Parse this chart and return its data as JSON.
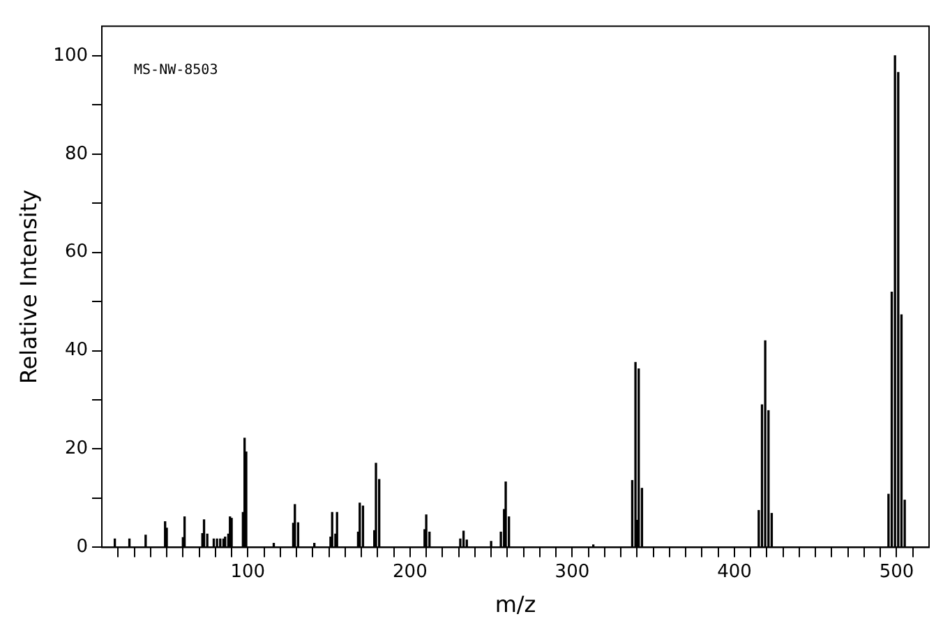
{
  "chart_data": {
    "type": "bar",
    "xlabel": "m/z",
    "ylabel": "Relative Intensity",
    "annotations": [
      "MS-NW-8503"
    ],
    "x": [
      18,
      27,
      37,
      49,
      50,
      60,
      61,
      72,
      73,
      75,
      79,
      81,
      83,
      85,
      86,
      88,
      89,
      90,
      97,
      98,
      99,
      116,
      128,
      129,
      131,
      141,
      151,
      152,
      154,
      155,
      168,
      169,
      171,
      178,
      179,
      181,
      209,
      210,
      212,
      231,
      233,
      235,
      250,
      256,
      258,
      259,
      261,
      313,
      337,
      339,
      340,
      341,
      343,
      415,
      417,
      419,
      421,
      423,
      495,
      497,
      499,
      501,
      503,
      505
    ],
    "values": [
      1.7,
      1.7,
      2.5,
      5.2,
      3.9,
      2,
      6.2,
      2.8,
      5.6,
      2.7,
      1.7,
      1.7,
      1.7,
      1.7,
      2.1,
      2.7,
      6.2,
      5.9,
      7.1,
      22.2,
      19.4,
      0.8,
      4.9,
      8.7,
      5,
      0.8,
      2.1,
      7.1,
      2.7,
      7.1,
      3.1,
      9,
      8.4,
      3.4,
      17.1,
      13.8,
      3.6,
      6.6,
      3.1,
      1.7,
      3.3,
      1.5,
      1.2,
      3.1,
      7.7,
      13.3,
      6.2,
      0.5,
      13.6,
      37.6,
      5.5,
      36.3,
      12,
      7.5,
      29,
      42,
      27.8,
      6.9,
      10.8,
      51.9,
      100,
      96.6,
      47.3,
      9.6
    ],
    "color": "#000000",
    "grid": false,
    "xlim": [
      10,
      520
    ],
    "xticks": [
      {
        "value": 20,
        "label": null
      },
      {
        "value": 30,
        "label": null
      },
      {
        "value": 40,
        "label": null
      },
      {
        "value": 50,
        "label": null
      },
      {
        "value": 60,
        "label": null
      },
      {
        "value": 70,
        "label": null
      },
      {
        "value": 80,
        "label": null
      },
      {
        "value": 90,
        "label": null
      },
      100,
      {
        "value": 110,
        "label": null
      },
      {
        "value": 120,
        "label": null
      },
      {
        "value": 130,
        "label": null
      },
      {
        "value": 140,
        "label": null
      },
      {
        "value": 150,
        "label": null
      },
      {
        "value": 160,
        "label": null
      },
      {
        "value": 170,
        "label": null
      },
      {
        "value": 180,
        "label": null
      },
      {
        "value": 190,
        "label": null
      },
      200,
      {
        "value": 210,
        "label": null
      },
      {
        "value": 220,
        "label": null
      },
      {
        "value": 230,
        "label": null
      },
      {
        "value": 240,
        "label": null
      },
      {
        "value": 250,
        "label": null
      },
      {
        "value": 260,
        "label": null
      },
      {
        "value": 270,
        "label": null
      },
      {
        "value": 280,
        "label": null
      },
      {
        "value": 290,
        "label": null
      },
      300,
      {
        "value": 310,
        "label": null
      },
      {
        "value": 320,
        "label": null
      },
      {
        "value": 330,
        "label": null
      },
      {
        "value": 340,
        "label": null
      },
      {
        "value": 350,
        "label": null
      },
      {
        "value": 360,
        "label": null
      },
      {
        "value": 370,
        "label": null
      },
      {
        "value": 380,
        "label": null
      },
      {
        "value": 390,
        "label": null
      },
      400,
      {
        "value": 410,
        "label": null
      },
      {
        "value": 420,
        "label": null
      },
      {
        "value": 430,
        "label": null
      },
      {
        "value": 440,
        "label": null
      },
      {
        "value": 450,
        "label": null
      },
      {
        "value": 460,
        "label": null
      },
      {
        "value": 470,
        "label": null
      },
      {
        "value": 480,
        "label": null
      },
      {
        "value": 490,
        "label": null
      },
      500,
      {
        "value": 510,
        "label": null
      }
    ],
    "ylim": [
      0,
      106
    ],
    "yticks": [
      0,
      {
        "value": 10,
        "label": null
      },
      20,
      {
        "value": 30,
        "label": null
      },
      40,
      {
        "value": 50,
        "label": null
      },
      60,
      {
        "value": 70,
        "label": null
      },
      80,
      {
        "value": 90,
        "label": null
      },
      100
    ]
  }
}
